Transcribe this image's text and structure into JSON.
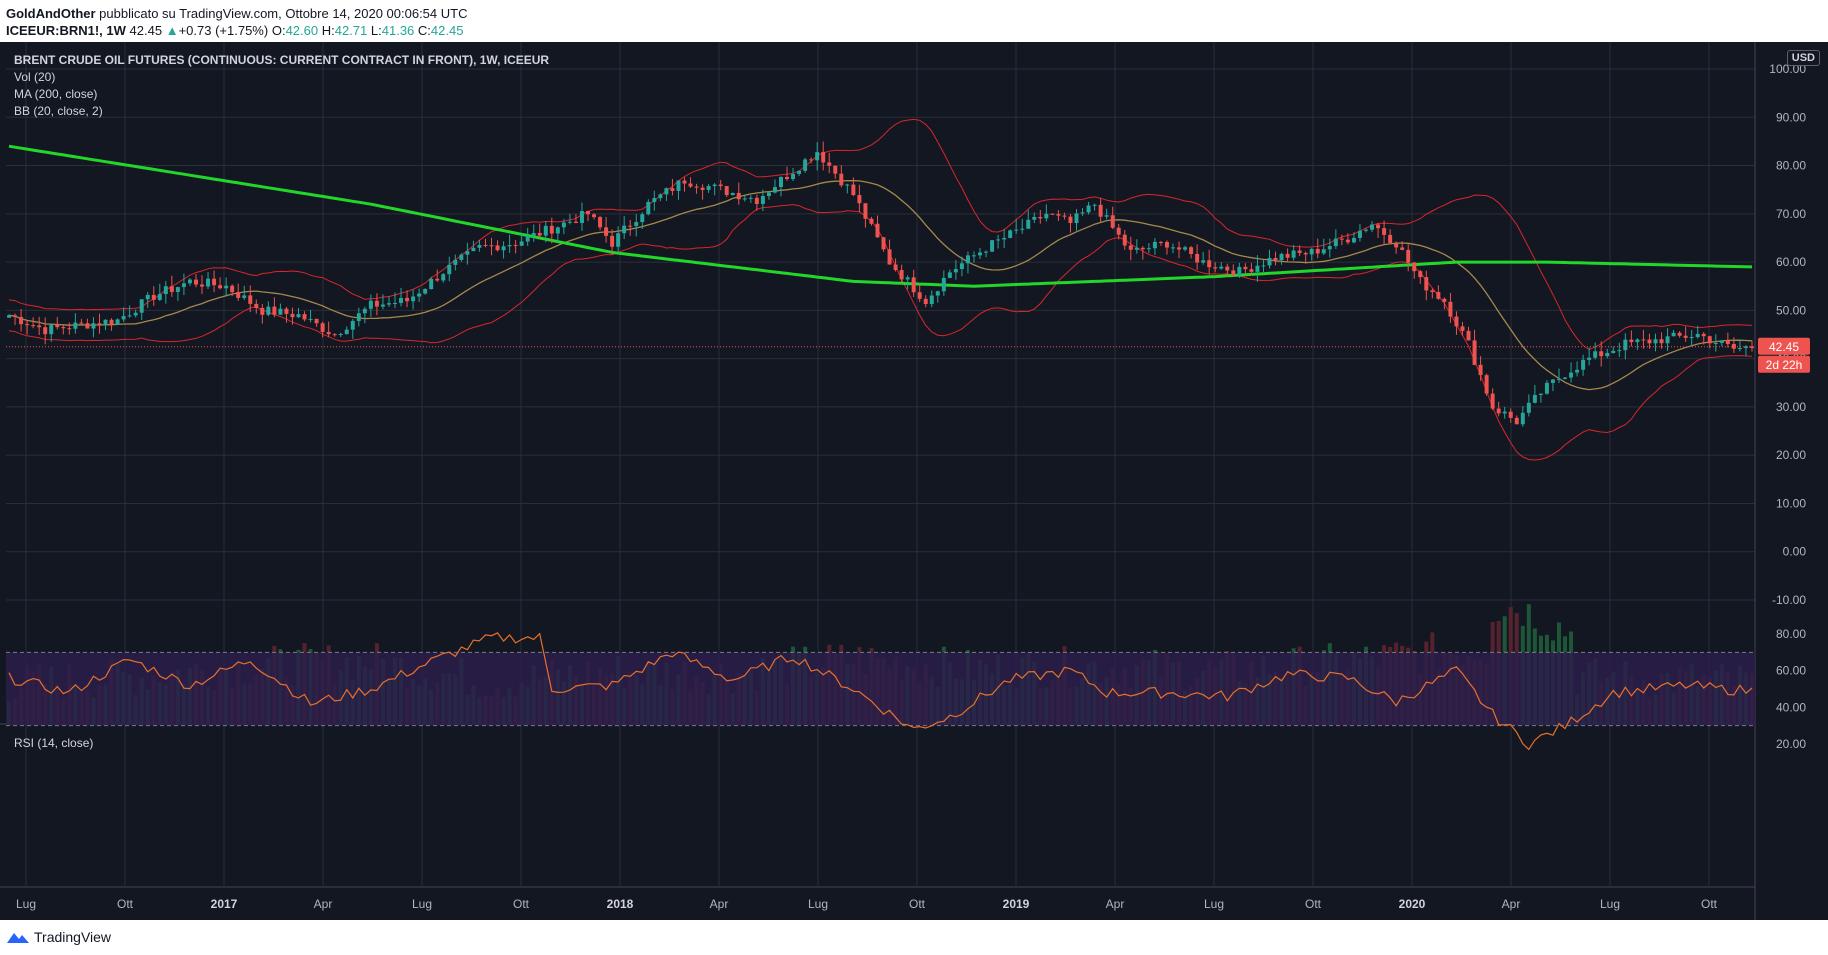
{
  "header": {
    "author": "GoldAndOther",
    "published": " pubblicato su TradingView.com, Ottobre 14, 2020 00:06:54 UTC",
    "symbol": "ICEEUR:BRN1!, 1W",
    "last": "42.45",
    "change": "+0.73 (+1.75%)",
    "o_label": "O:",
    "o_val": "42.60",
    "h_label": "H:",
    "h_val": "42.71",
    "l_label": "L:",
    "l_val": "41.36",
    "c_label": "C:",
    "c_val": "42.45"
  },
  "legend": {
    "title": "BRENT CRUDE OIL FUTURES (CONTINUOUS: CURRENT CONTRACT IN FRONT), 1W, ICEEUR",
    "vol": "Vol (20)",
    "ma": "MA (200, close)",
    "bb": "BB (20, close, 2)"
  },
  "rsi_label": "RSI (14, close)",
  "currency": "USD",
  "price_badge": "42.45",
  "countdown_badge": "2d 22h",
  "footer": {
    "brand": "TradingView"
  },
  "colors": {
    "background": "#131722",
    "up": "#26a69a",
    "down": "#ef5350",
    "ma200": "#22d62a",
    "bb_basis": "#a6884c",
    "bb_bands": "#d9262b",
    "rsi_line": "#e8702a",
    "rsi_band": "#2b1f4a"
  },
  "chart_data": {
    "type": "candlestick",
    "interval": "1W",
    "price_axis": {
      "ticks": [
        "100.00",
        "90.00",
        "80.00",
        "70.00",
        "60.00",
        "50.00",
        "40.00",
        "30.00",
        "20.00",
        "10.00",
        "0.00",
        "-10.00"
      ],
      "range": [
        -10,
        100
      ]
    },
    "rsi_axis": {
      "ticks": [
        "80.00",
        "60.00",
        "40.00",
        "20.00"
      ],
      "bands": [
        30,
        70
      ]
    },
    "x_ticks": [
      {
        "label": "Lug"
      },
      {
        "label": "Ott"
      },
      {
        "label": "2017",
        "strong": true
      },
      {
        "label": "Apr"
      },
      {
        "label": "Lug"
      },
      {
        "label": "Ott"
      },
      {
        "label": "2018",
        "strong": true
      },
      {
        "label": "Apr"
      },
      {
        "label": "Lug"
      },
      {
        "label": "Ott"
      },
      {
        "label": "2019",
        "strong": true
      },
      {
        "label": "Apr"
      },
      {
        "label": "Lug"
      },
      {
        "label": "Ott"
      },
      {
        "label": "2020",
        "strong": true
      },
      {
        "label": "Apr"
      },
      {
        "label": "Lug"
      },
      {
        "label": "Ott"
      }
    ],
    "close_anchors": [
      [
        0,
        49
      ],
      [
        6,
        46
      ],
      [
        12,
        47
      ],
      [
        18,
        48
      ],
      [
        24,
        53
      ],
      [
        30,
        56
      ],
      [
        36,
        55
      ],
      [
        42,
        50
      ],
      [
        48,
        49
      ],
      [
        54,
        45
      ],
      [
        60,
        51
      ],
      [
        66,
        52
      ],
      [
        72,
        58
      ],
      [
        78,
        63
      ],
      [
        84,
        64
      ],
      [
        90,
        67
      ],
      [
        96,
        70
      ],
      [
        100,
        64
      ],
      [
        106,
        72
      ],
      [
        112,
        77
      ],
      [
        118,
        75
      ],
      [
        124,
        73
      ],
      [
        130,
        79
      ],
      [
        134,
        83
      ],
      [
        140,
        74
      ],
      [
        146,
        60
      ],
      [
        152,
        52
      ],
      [
        156,
        58
      ],
      [
        162,
        63
      ],
      [
        168,
        67
      ],
      [
        172,
        70
      ],
      [
        176,
        68
      ],
      [
        180,
        72
      ],
      [
        186,
        62
      ],
      [
        192,
        64
      ],
      [
        198,
        60
      ],
      [
        204,
        58
      ],
      [
        210,
        61
      ],
      [
        216,
        62
      ],
      [
        222,
        65
      ],
      [
        226,
        68
      ],
      [
        230,
        64
      ],
      [
        234,
        56
      ],
      [
        238,
        52
      ],
      [
        242,
        43
      ],
      [
        246,
        30
      ],
      [
        250,
        27
      ],
      [
        254,
        33
      ],
      [
        258,
        37
      ],
      [
        262,
        40
      ],
      [
        268,
        43
      ],
      [
        274,
        44
      ],
      [
        280,
        45
      ],
      [
        286,
        42
      ],
      [
        289,
        42.45
      ]
    ],
    "volume_anchors": [
      [
        0,
        38
      ],
      [
        20,
        45
      ],
      [
        40,
        55
      ],
      [
        60,
        60
      ],
      [
        80,
        40
      ],
      [
        100,
        50
      ],
      [
        120,
        48
      ],
      [
        140,
        62
      ],
      [
        160,
        52
      ],
      [
        180,
        55
      ],
      [
        200,
        50
      ],
      [
        220,
        58
      ],
      [
        240,
        70
      ],
      [
        250,
        72
      ],
      [
        260,
        45
      ],
      [
        289,
        40
      ]
    ],
    "rsi_anchors": [
      [
        0,
        56
      ],
      [
        10,
        48
      ],
      [
        20,
        66
      ],
      [
        30,
        52
      ],
      [
        40,
        66
      ],
      [
        50,
        42
      ],
      [
        60,
        50
      ],
      [
        70,
        65
      ],
      [
        80,
        78
      ],
      [
        88,
        78
      ],
      [
        90,
        50
      ],
      [
        100,
        52
      ],
      [
        110,
        70
      ],
      [
        120,
        55
      ],
      [
        130,
        68
      ],
      [
        140,
        50
      ],
      [
        150,
        28
      ],
      [
        156,
        35
      ],
      [
        166,
        55
      ],
      [
        176,
        60
      ],
      [
        182,
        48
      ],
      [
        192,
        48
      ],
      [
        202,
        46
      ],
      [
        212,
        58
      ],
      [
        222,
        56
      ],
      [
        230,
        43
      ],
      [
        240,
        60
      ],
      [
        246,
        36
      ],
      [
        252,
        20
      ],
      [
        258,
        30
      ],
      [
        266,
        48
      ],
      [
        278,
        52
      ],
      [
        284,
        50
      ],
      [
        289,
        49
      ]
    ],
    "bars": 290
  }
}
